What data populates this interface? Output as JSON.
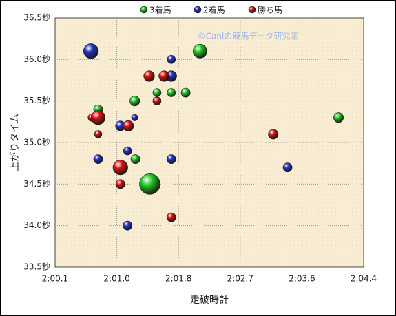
{
  "chart_data": {
    "type": "bubble",
    "x_label": "走破時計",
    "y_label": "上がりタイム",
    "annotation": "©Caniの競馬データ研究室",
    "xlim": [
      120.1,
      124.4
    ],
    "xticks": [
      {
        "value": 120.1,
        "label": "2:00.1"
      },
      {
        "value": 120.96,
        "label": "2:01.0"
      },
      {
        "value": 121.82,
        "label": "2:01.8"
      },
      {
        "value": 122.68,
        "label": "2:02.7"
      },
      {
        "value": 123.54,
        "label": "2:03.6"
      },
      {
        "value": 124.4,
        "label": "2:04.4"
      }
    ],
    "ylim": [
      33.5,
      36.5
    ],
    "yticks": [
      {
        "value": 33.5,
        "label": "33.5秒"
      },
      {
        "value": 34.0,
        "label": "34.0秒"
      },
      {
        "value": 34.5,
        "label": "34.5秒"
      },
      {
        "value": 35.0,
        "label": "35.0秒"
      },
      {
        "value": 35.5,
        "label": "35.5秒"
      },
      {
        "value": 36.0,
        "label": "36.0秒"
      },
      {
        "value": 36.5,
        "label": "36.5秒"
      }
    ],
    "grid": true,
    "legend": "top",
    "series": [
      {
        "name": "3着馬",
        "color": "#22cc22",
        "x": [
          122.12,
          121.52,
          121.72,
          121.92,
          121.21,
          120.7,
          124.05,
          121.22,
          121.42
        ],
        "values": [
          36.1,
          35.6,
          35.6,
          35.6,
          35.5,
          35.4,
          35.3,
          34.8,
          34.5
        ],
        "sizes": [
          1.7,
          1,
          1,
          1.1,
          1.2,
          1.1,
          1.2,
          1.1,
          2.5
        ]
      },
      {
        "name": "2着馬",
        "color": "#2233cc",
        "x": [
          120.6,
          121.72,
          121.72,
          121.21,
          121.01,
          121.11,
          120.7,
          121.72,
          123.34,
          121.11
        ],
        "values": [
          36.1,
          36.0,
          35.8,
          35.3,
          35.2,
          34.9,
          34.8,
          34.8,
          34.7,
          34.0
        ],
        "sizes": [
          1.8,
          1,
          1.3,
          0.8,
          1.2,
          1,
          1.1,
          1.1,
          1.1,
          1.1
        ]
      },
      {
        "name": "勝ち馬",
        "color": "#dd1111",
        "x": [
          121.41,
          121.62,
          121.52,
          120.61,
          120.7,
          121.12,
          120.7,
          123.14,
          121.01,
          121.01,
          121.72
        ],
        "values": [
          35.8,
          35.8,
          35.5,
          35.3,
          35.3,
          35.2,
          35.1,
          35.1,
          34.7,
          34.5,
          34.1
        ],
        "sizes": [
          1.3,
          1.3,
          1,
          0.9,
          1.7,
          1.3,
          0.9,
          1.2,
          1.8,
          1.1,
          1.1
        ]
      }
    ]
  }
}
